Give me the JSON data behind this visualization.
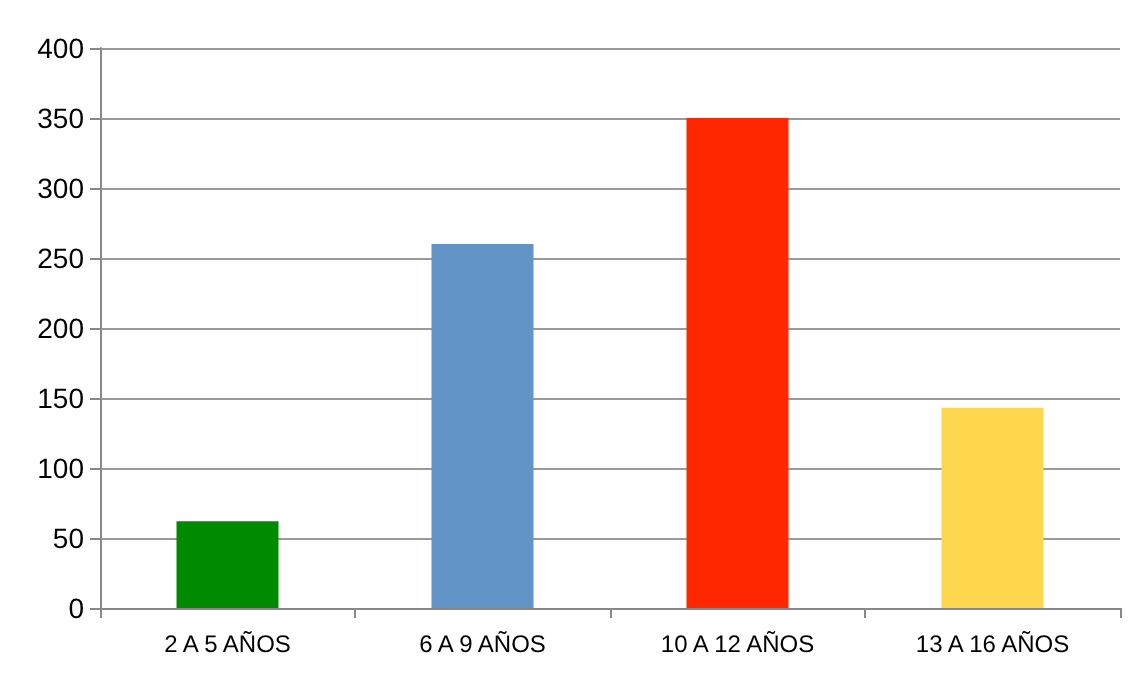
{
  "chart_data": {
    "type": "bar",
    "categories": [
      "2 A 5 AÑOS",
      "6 A 9 AÑOS",
      "10 A 12 AÑOS",
      "13 A 16 AÑOS"
    ],
    "values": [
      62,
      260,
      350,
      143
    ],
    "colors": [
      "#008a00",
      "#6394c8",
      "#ff2600",
      "#ffd74e"
    ],
    "ylim": [
      0,
      400
    ],
    "yticks": [
      0,
      50,
      100,
      150,
      200,
      250,
      300,
      350,
      400
    ],
    "grid": "y"
  }
}
